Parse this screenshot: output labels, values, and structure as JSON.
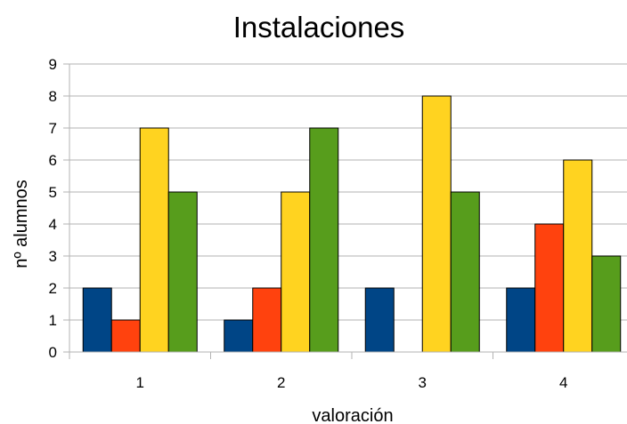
{
  "chart_data": {
    "type": "bar",
    "title": "Instalaciones",
    "xlabel": "valoración",
    "ylabel": "nº alumnos",
    "categories": [
      "1",
      "2",
      "3",
      "4"
    ],
    "ylim": [
      0,
      9
    ],
    "yticks": [
      "0",
      "1",
      "2",
      "3",
      "4",
      "5",
      "6",
      "7",
      "8",
      "9"
    ],
    "grid": true,
    "legend": "none",
    "series": [
      {
        "values": [
          2,
          1,
          2,
          2
        ],
        "color": "#004586"
      },
      {
        "values": [
          1,
          2,
          0,
          4
        ],
        "color": "#ff420e"
      },
      {
        "values": [
          7,
          5,
          8,
          6
        ],
        "color": "#ffd320"
      },
      {
        "values": [
          5,
          7,
          5,
          3
        ],
        "color": "#579d1c"
      }
    ]
  }
}
